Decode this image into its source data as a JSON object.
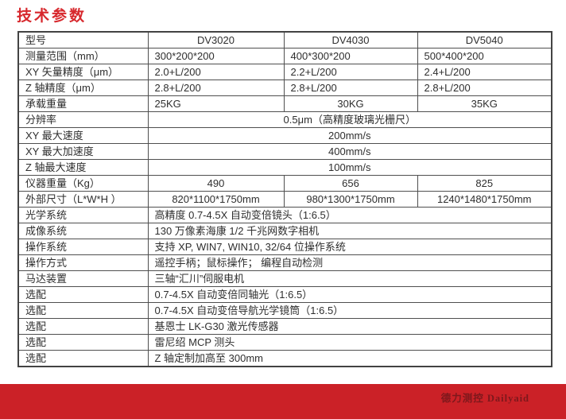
{
  "page": {
    "title": "技术参数"
  },
  "colors": {
    "title_red": "#d7282d",
    "footer_bar_red": "#cb2127",
    "footer_text_red": "#7d181c",
    "table_border_gray": "#4f4f4f",
    "table_text": "#2e2e2e"
  },
  "table": {
    "models": [
      "DV3020",
      "DV4030",
      "DV5040"
    ],
    "rows": [
      {
        "label": "型号",
        "cells": [
          "DV3020",
          "DV4030",
          "DV5040"
        ],
        "align": "center"
      },
      {
        "label": "测量范围（mm）",
        "cells": [
          "300*200*200",
          "400*300*200",
          "500*400*200"
        ],
        "align": "left"
      },
      {
        "label": "XY 矢量精度（μm）",
        "cells": [
          "2.0+L/200",
          "2.2+L/200",
          "2.4+L/200"
        ],
        "align": "left"
      },
      {
        "label": "Z 轴精度（μm）",
        "cells": [
          "2.8+L/200",
          "2.8+L/200",
          "2.8+L/200"
        ],
        "align": "left"
      },
      {
        "label": "承载重量",
        "cells": [
          "25KG",
          "30KG",
          "35KG"
        ],
        "aligns": [
          "left",
          "center",
          "center"
        ]
      },
      {
        "label": "分辨率",
        "span": "0.5μm（高精度玻璃光栅尺）",
        "align": "center"
      },
      {
        "label": "XY 最大速度",
        "span": "200mm/s",
        "align": "center"
      },
      {
        "label": "XY 最大加速度",
        "span": "400mm/s",
        "align": "center"
      },
      {
        "label": "Z 轴最大速度",
        "span": "100mm/s",
        "align": "center"
      },
      {
        "label": "仪器重量（Kg）",
        "cells": [
          "490",
          "656",
          "825"
        ],
        "align": "center"
      },
      {
        "label": "外部尺寸（L*W*H ）",
        "cells": [
          "820*1100*1750mm",
          "980*1300*1750mm",
          "1240*1480*1750mm"
        ],
        "align": "center"
      },
      {
        "label": "光学系统",
        "span": "高精度 0.7-4.5X 自动变倍镜头（1:6.5）",
        "align": "left"
      },
      {
        "label": "成像系统",
        "span": "130 万像素海康 1/2 千兆网数字相机",
        "align": "left"
      },
      {
        "label": "操作系统",
        "span": "支持 XP, WIN7, WIN10, 32/64 位操作系统",
        "align": "left"
      },
      {
        "label": "操作方式",
        "span": "遥控手柄；鼠标操作； 编程自动检测",
        "align": "left"
      },
      {
        "label": "马达装置",
        "span": "三轴“汇川”伺服电机",
        "align": "left"
      },
      {
        "label": "选配",
        "span": "0.7-4.5X 自动变倍同轴光（1:6.5）",
        "align": "left"
      },
      {
        "label": "选配",
        "span": "0.7-4.5X 自动变倍导航光学镜筒（1:6.5）",
        "align": "left"
      },
      {
        "label": "选配",
        "span": "基恩士 LK-G30 激光传感器",
        "align": "left"
      },
      {
        "label": "选配",
        "span": "雷尼绍 MCP 测头",
        "align": "left"
      },
      {
        "label": "选配",
        "span": "Z 轴定制加高至 300mm",
        "align": "left"
      }
    ]
  },
  "footer": {
    "brand": "德力测控 Dailyaid"
  }
}
